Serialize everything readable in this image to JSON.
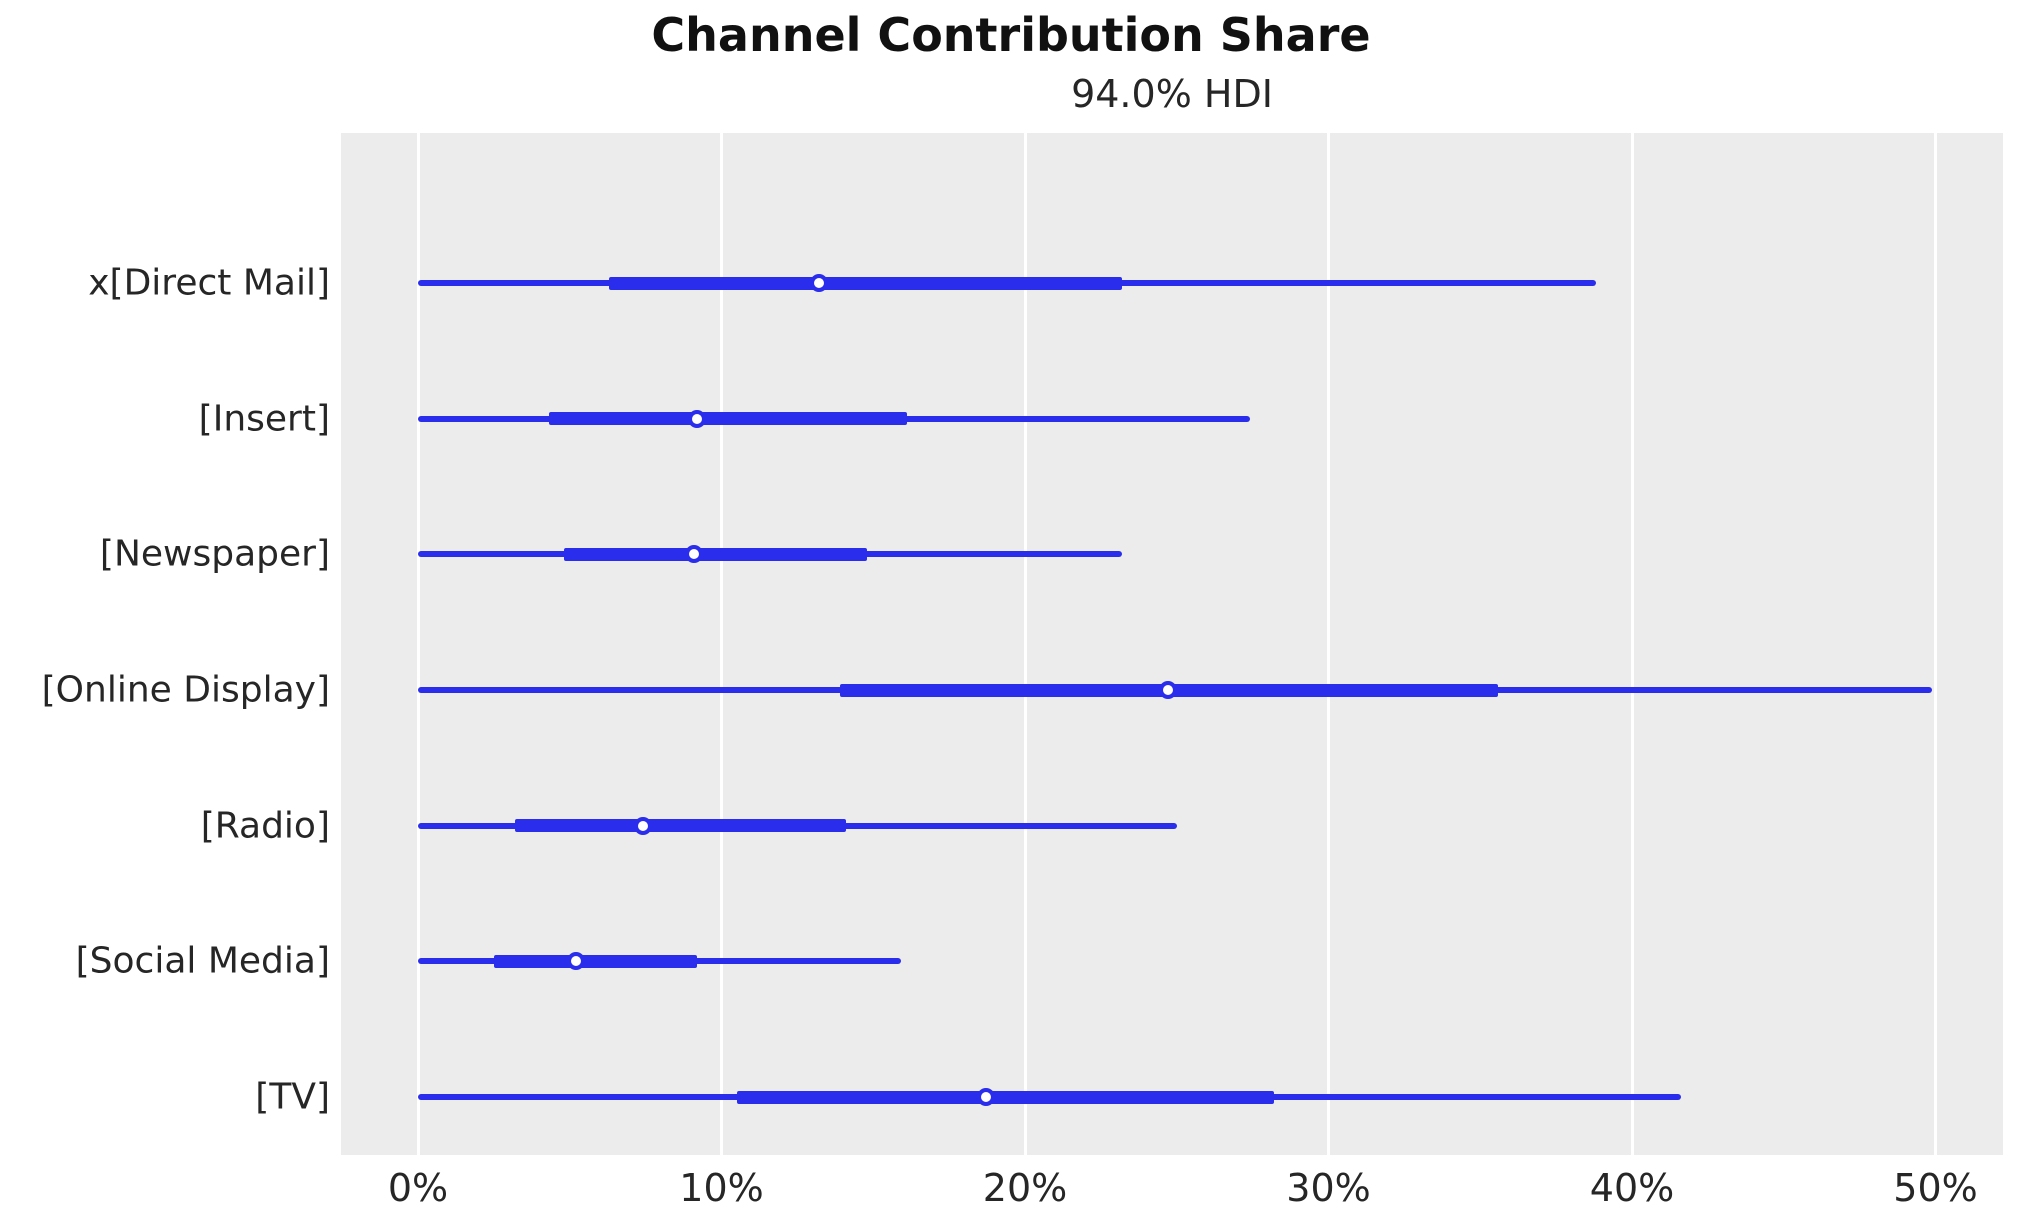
{
  "title": "Channel Contribution Share",
  "subtitle": "94.0% HDI",
  "chart_data": {
    "type": "forest",
    "title": "Channel Contribution Share",
    "subtitle": "94.0% HDI",
    "hdi_probability": "94.0%",
    "unit": "percent",
    "xlim": [
      -2.5,
      52.2
    ],
    "xtick_values": [
      0,
      10,
      20,
      30,
      40,
      50
    ],
    "xtick_labels": [
      "0%",
      "10%",
      "20%",
      "30%",
      "40%",
      "50%"
    ],
    "grid": "vertical white gridlines on gray panel, no axis spines",
    "legend_position": "none",
    "series": [
      {
        "label": "x[Direct Mail]",
        "hdi_low": 0,
        "hdi_high": 38.8,
        "iqr_low": 6.3,
        "iqr_high": 23.2,
        "median": 13.2
      },
      {
        "label": "[Insert]",
        "hdi_low": 0,
        "hdi_high": 27.4,
        "iqr_low": 4.3,
        "iqr_high": 16.1,
        "median": 9.2
      },
      {
        "label": "[Newspaper]",
        "hdi_low": 0,
        "hdi_high": 23.2,
        "iqr_low": 4.8,
        "iqr_high": 14.8,
        "median": 9.1
      },
      {
        "label": "[Online Display]",
        "hdi_low": 0,
        "hdi_high": 49.9,
        "iqr_low": 13.9,
        "iqr_high": 35.6,
        "median": 24.7
      },
      {
        "label": "[Radio]",
        "hdi_low": 0,
        "hdi_high": 25.0,
        "iqr_low": 3.2,
        "iqr_high": 14.1,
        "median": 7.4
      },
      {
        "label": "[Social Media]",
        "hdi_low": 0,
        "hdi_high": 15.9,
        "iqr_low": 2.5,
        "iqr_high": 9.2,
        "median": 5.2
      },
      {
        "label": "[TV]",
        "hdi_low": 0,
        "hdi_high": 41.6,
        "iqr_low": 10.5,
        "iqr_high": 28.2,
        "median": 18.7
      }
    ],
    "colors": {
      "line": "#2a2eec",
      "marker_fill": "#ffffff",
      "plot_background": "#ececec",
      "gridline": "#ffffff",
      "text": "#262626",
      "title_text": "#111111"
    }
  }
}
